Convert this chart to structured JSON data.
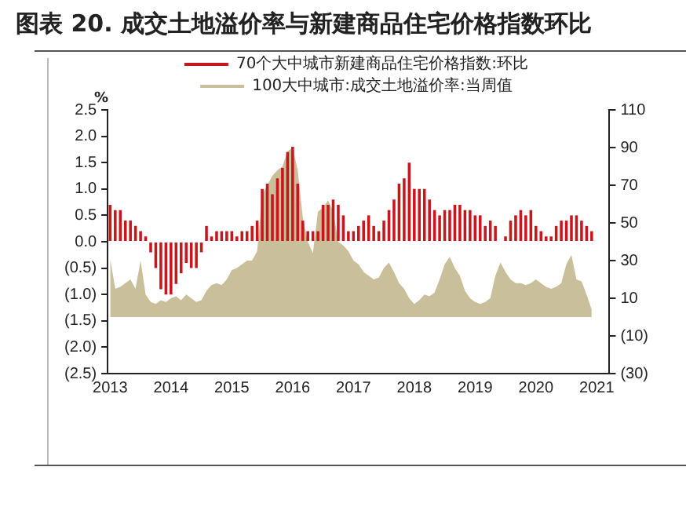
{
  "chart_data": {
    "type": "bar",
    "title": "图表 20. 成交土地溢价率与新建商品住宅价格指数环比",
    "ylabel": "%",
    "categories": [
      "2013",
      null,
      null,
      null,
      null,
      null,
      null,
      null,
      null,
      null,
      null,
      null,
      "2014",
      null,
      null,
      null,
      null,
      null,
      null,
      null,
      null,
      null,
      null,
      null,
      "2015",
      null,
      null,
      null,
      null,
      null,
      null,
      null,
      null,
      null,
      null,
      null,
      "2016",
      null,
      null,
      null,
      null,
      null,
      null,
      null,
      null,
      null,
      null,
      null,
      "2017",
      null,
      null,
      null,
      null,
      null,
      null,
      null,
      null,
      null,
      null,
      null,
      "2018",
      null,
      null,
      null,
      null,
      null,
      null,
      null,
      null,
      null,
      null,
      null,
      "2019",
      null,
      null,
      null,
      null,
      null,
      null,
      null,
      null,
      null,
      null,
      null,
      "2020",
      null,
      null,
      null,
      null,
      null,
      null,
      null,
      null,
      null,
      null,
      null,
      "2021",
      null,
      null
    ],
    "series": [
      {
        "name": "70个大中城市新建商品住宅价格指数:环比",
        "color": "#c8161d",
        "values": [
          0.7,
          0.6,
          0.6,
          0.4,
          0.4,
          0.3,
          0.2,
          0.1,
          -0.2,
          -0.5,
          -0.9,
          -1.0,
          -1.0,
          -0.8,
          -0.6,
          -0.4,
          -0.5,
          -0.5,
          -0.2,
          0.3,
          0.1,
          0.2,
          0.2,
          0.2,
          0.2,
          0.1,
          0.2,
          0.2,
          0.3,
          0.4,
          1.0,
          1.1,
          0.9,
          1.2,
          1.4,
          1.7,
          1.8,
          1.1,
          0.4,
          0.2,
          0.2,
          0.2,
          0.7,
          0.7,
          0.8,
          0.7,
          0.5,
          0.2,
          0.2,
          0.3,
          0.4,
          0.5,
          0.3,
          0.2,
          0.4,
          0.6,
          0.8,
          1.1,
          1.2,
          1.5,
          1.0,
          1.0,
          1.0,
          0.8,
          0.6,
          0.5,
          0.6,
          0.6,
          0.7,
          0.7,
          0.6,
          0.6,
          0.5,
          0.5,
          0.3,
          0.4,
          0.3,
          0.0,
          0.1,
          0.4,
          0.5,
          0.6,
          0.5,
          0.6,
          0.3,
          0.2,
          0.1,
          0.1,
          0.3,
          0.4,
          0.4,
          0.5,
          0.5,
          0.4,
          0.3,
          0.2,
          null,
          null,
          null
        ]
      },
      {
        "name": "100大中城市:成交土地溢价率:当周值",
        "type": "area",
        "axis": "y2",
        "color": "#c9bf9b",
        "values": [
          31,
          15,
          16,
          18,
          20,
          15,
          30,
          12,
          8,
          7,
          9,
          8,
          10,
          11,
          9,
          12,
          10,
          8,
          9,
          14,
          17,
          18,
          17,
          20,
          25,
          26,
          28,
          30,
          30,
          35,
          65,
          70,
          75,
          78,
          80,
          88,
          90,
          78,
          53,
          40,
          34,
          56,
          58,
          62,
          56,
          40,
          38,
          35,
          30,
          28,
          24,
          22,
          20,
          21,
          26,
          29,
          24,
          18,
          15,
          10,
          7,
          9,
          12,
          11,
          13,
          20,
          28,
          32,
          26,
          22,
          14,
          10,
          8,
          7,
          8,
          10,
          22,
          29,
          24,
          20,
          18,
          18,
          17,
          18,
          20,
          18,
          16,
          15,
          16,
          18,
          28,
          33,
          20,
          19,
          12,
          4,
          null,
          null,
          null
        ]
      }
    ],
    "ylim": [
      -2.5,
      2.5
    ],
    "yticks": [
      {
        "value": -2.5,
        "label": "(2.5)"
      },
      {
        "value": -2.0,
        "label": "(2.0)"
      },
      {
        "value": -1.5,
        "label": "(1.5)"
      },
      {
        "value": -1.0,
        "label": "(1.0)"
      },
      {
        "value": -0.5,
        "label": "(0.5)"
      },
      {
        "value": 0,
        "label": "0.0"
      },
      {
        "value": 0.5,
        "label": "0.5"
      },
      {
        "value": 1.0,
        "label": "1.0"
      },
      {
        "value": 1.5,
        "label": "1.5"
      },
      {
        "value": 2.0,
        "label": "2.0"
      },
      {
        "value": 2.5,
        "label": "2.5"
      }
    ],
    "y2lim": [
      -30,
      110
    ],
    "y2ticks": [
      {
        "value": -30,
        "label": "(30)"
      },
      {
        "value": -10,
        "label": "(10)"
      },
      10,
      30,
      50,
      70,
      90,
      110
    ],
    "legend": "top",
    "grid": false
  }
}
